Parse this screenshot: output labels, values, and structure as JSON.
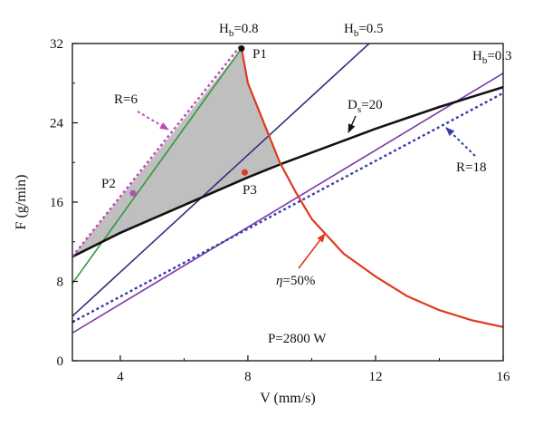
{
  "chart_data": {
    "type": "line",
    "xlabel": "V (mm/s)",
    "ylabel": "F (g/min)",
    "xlim": [
      2.5,
      16
    ],
    "ylim": [
      0,
      32
    ],
    "x_ticks": [
      "4",
      "8",
      "12",
      "16"
    ],
    "y_ticks": [
      "0",
      "8",
      "16",
      "24",
      "32"
    ],
    "colors": {
      "hb08": "#2e9a3c",
      "hb05": "#30307a",
      "hb03": "#7a38a8",
      "ds20": "#111111",
      "r6": "#c04ab8",
      "r18": "#3a3aa8",
      "eta": "#dd3a1e",
      "region": "#bfbfbf",
      "point": "#c04ab8"
    },
    "series": [
      {
        "key": "hb08",
        "style": "solid",
        "x": [
          2.5,
          7.8
        ],
        "y": [
          7.8,
          31.5
        ]
      },
      {
        "key": "hb05",
        "style": "solid",
        "x": [
          2.5,
          11.8
        ],
        "y": [
          4.5,
          32
        ]
      },
      {
        "key": "hb03",
        "style": "solid",
        "x": [
          2.5,
          16
        ],
        "y": [
          2.8,
          29
        ]
      },
      {
        "key": "ds20",
        "style": "solid",
        "x": [
          2.5,
          3,
          4,
          5,
          6,
          7,
          8,
          9,
          10,
          11,
          12,
          13,
          14,
          15,
          16
        ],
        "y": [
          10.5,
          11.3,
          12.9,
          14.3,
          15.7,
          17.1,
          18.5,
          19.8,
          21.0,
          22.2,
          23.4,
          24.5,
          25.6,
          26.6,
          27.6
        ]
      },
      {
        "key": "r6",
        "style": "dotted",
        "x": [
          2.5,
          7.8
        ],
        "y": [
          10.5,
          31.9
        ]
      },
      {
        "key": "r18",
        "style": "dotted",
        "x": [
          2.5,
          16
        ],
        "y": [
          3.9,
          27
        ]
      },
      {
        "key": "eta",
        "style": "solid",
        "x": [
          7.8,
          8.0,
          8.5,
          9.0,
          9.5,
          10.0,
          11.0,
          12.0,
          13.0,
          14.0,
          15.0,
          16.0
        ],
        "y": [
          31.5,
          28.0,
          24.0,
          20.0,
          17.0,
          14.3,
          10.8,
          8.5,
          6.5,
          5.1,
          4.1,
          3.4
        ]
      }
    ],
    "region": {
      "x": [
        7.8,
        8.0,
        8.5,
        9.0,
        8.0,
        7.0,
        6.0,
        5.0,
        4.0,
        3.0,
        2.5
      ],
      "y": [
        31.5,
        28.0,
        24.0,
        20.0,
        18.5,
        17.1,
        15.7,
        14.3,
        12.9,
        11.3,
        10.5
      ]
    },
    "points": [
      {
        "name": "P1",
        "x": 7.8,
        "y": 31.5,
        "color": "ds20"
      },
      {
        "name": "P2",
        "x": 4.4,
        "y": 16.9,
        "color": "point"
      },
      {
        "name": "P3",
        "x": 7.9,
        "y": 19.0,
        "color": "eta"
      }
    ],
    "annotations": {
      "hb08": {
        "main": "H",
        "sub": "b",
        "rest": "=0.8"
      },
      "hb05": {
        "main": "H",
        "sub": "b",
        "rest": "=0.5"
      },
      "hb03": {
        "main": "H",
        "sub": "b",
        "rest": "=0.3"
      },
      "ds20": {
        "main": "D",
        "sub": "s",
        "rest": "=20"
      },
      "r6": "R=6",
      "r18": "R=18",
      "eta": {
        "symbol": "η",
        "rest": "=50%"
      },
      "power": "P=2800 W",
      "p1": "P1",
      "p2": "P2",
      "p3": "P3"
    }
  }
}
